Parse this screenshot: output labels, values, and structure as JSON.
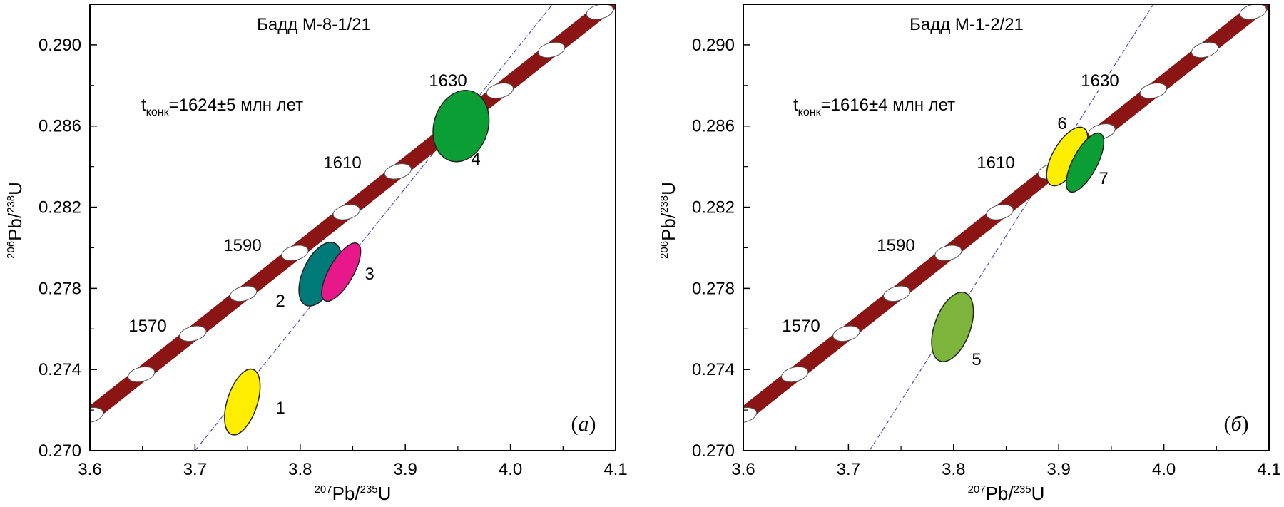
{
  "chart_data": [
    {
      "type": "scatter",
      "panel_label": "а",
      "title": "Бадд М-8-1/21",
      "age_text": {
        "prefix": "t",
        "subscript": "конк",
        "value": "=1624±5 млн лет"
      },
      "xlabel": {
        "sup1": "207",
        "base1": "Pb/",
        "sup2": "235",
        "base2": "U"
      },
      "ylabel": {
        "sup1": "206",
        "base1": "Pb/",
        "sup2": "238",
        "base2": "U"
      },
      "xlim": [
        3.6,
        4.1
      ],
      "ylim": [
        0.27,
        0.292
      ],
      "x_ticks": [
        "3.6",
        "3.7",
        "3.8",
        "3.9",
        "4.0",
        "4.1"
      ],
      "y_ticks": [
        "0.270",
        "0.274",
        "0.278",
        "0.282",
        "0.286",
        "0.290"
      ],
      "concordia_age_labels": [
        "1570",
        "1590",
        "1610",
        "1630"
      ],
      "discordia_line": {
        "x": [
          3.7,
          4.04
        ],
        "y": [
          0.27,
          0.292
        ]
      },
      "ellipses": [
        {
          "label": "1",
          "x": 3.745,
          "y": 0.2724,
          "color": "#ffee00"
        },
        {
          "label": "2",
          "x": 3.819,
          "y": 0.2787,
          "color": "#007a78"
        },
        {
          "label": "3",
          "x": 3.839,
          "y": 0.2788,
          "color": "#e8178a"
        },
        {
          "label": "4",
          "x": 3.953,
          "y": 0.286,
          "color": "#0b9e35"
        }
      ]
    },
    {
      "type": "scatter",
      "panel_label": "б",
      "title": "Бадд М-1-2/21",
      "age_text": {
        "prefix": "t",
        "subscript": "конк",
        "value": "=1616±4 млн лет"
      },
      "xlabel": {
        "sup1": "207",
        "base1": "Pb/",
        "sup2": "235",
        "base2": "U"
      },
      "ylabel": {
        "sup1": "206",
        "base1": "Pb/",
        "sup2": "238",
        "base2": "U"
      },
      "xlim": [
        3.6,
        4.1
      ],
      "ylim": [
        0.27,
        0.292
      ],
      "x_ticks": [
        "3.6",
        "3.7",
        "3.8",
        "3.9",
        "4.0",
        "4.1"
      ],
      "y_ticks": [
        "0.270",
        "0.274",
        "0.278",
        "0.282",
        "0.286",
        "0.290"
      ],
      "concordia_age_labels": [
        "1570",
        "1590",
        "1610",
        "1630"
      ],
      "discordia_line": {
        "x": [
          3.72,
          3.99
        ],
        "y": [
          0.27,
          0.292
        ]
      },
      "ellipses": [
        {
          "label": "5",
          "x": 3.799,
          "y": 0.2761,
          "color": "#7db43b"
        },
        {
          "label": "6",
          "x": 3.908,
          "y": 0.2845,
          "color": "#ffee00"
        },
        {
          "label": "7",
          "x": 3.925,
          "y": 0.2842,
          "color": "#0b9e35"
        }
      ]
    }
  ],
  "concordia": {
    "band_color": "#8b1414",
    "marker_color": "#ffffff"
  }
}
